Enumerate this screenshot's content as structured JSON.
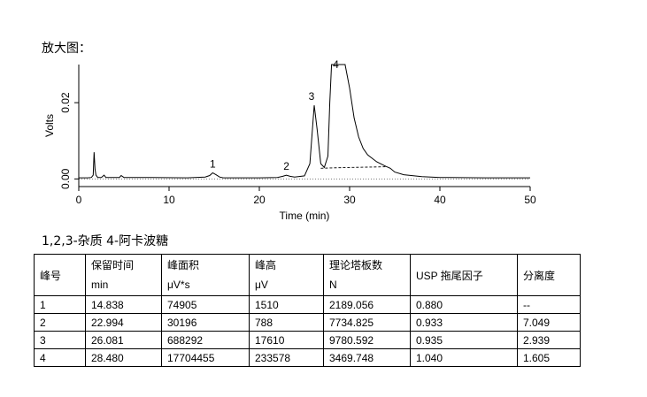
{
  "heading": "放大图：",
  "legend_note": "1,2,3-杂质  4-阿卡波糖",
  "chart_data": {
    "type": "line",
    "xlabel": "Time (min)",
    "ylabel": "Volts",
    "xlim": [
      0,
      50
    ],
    "ylim": [
      -0.002,
      0.03
    ],
    "x_ticks": [
      0,
      10,
      20,
      30,
      40,
      50
    ],
    "y_ticks": [
      0.0,
      0.02
    ],
    "y_tick_labels": [
      "0.00",
      "0.02"
    ],
    "series": [
      {
        "x": [
          0,
          1.0,
          1.4,
          1.6,
          1.7,
          1.8,
          1.9,
          2.1,
          2.5,
          2.8,
          3.0,
          3.2,
          4.0,
          4.5,
          4.7,
          5.0,
          8,
          12,
          14.0,
          14.5,
          14.838,
          15.2,
          15.6,
          16,
          20,
          22.0,
          22.6,
          22.994,
          23.4,
          23.9,
          25.0,
          25.6,
          26.081,
          26.4,
          26.8,
          27.2,
          27.6,
          27.8,
          28.0,
          28.2,
          28.48,
          29.0,
          29.5,
          30.0,
          30.5,
          31.0,
          31.5,
          32.0,
          33.0,
          34.0,
          34.5,
          35.0,
          36.0,
          38.0,
          40.0,
          45.0,
          50.0
        ],
        "y": [
          0.0003,
          0.0003,
          0.0004,
          0.001,
          0.007,
          0.0025,
          0.001,
          0.0004,
          0.0004,
          0.001,
          0.0004,
          0.0004,
          0.0004,
          0.0004,
          0.0009,
          0.0004,
          0.0004,
          0.0003,
          0.0005,
          0.0009,
          0.0016,
          0.0011,
          0.0005,
          0.0003,
          0.0003,
          0.0004,
          0.0007,
          0.001,
          0.0007,
          0.0005,
          0.0008,
          0.004,
          0.0193,
          0.013,
          0.004,
          0.003,
          0.006,
          0.02,
          0.03,
          0.03,
          0.03,
          0.03,
          0.03,
          0.0238,
          0.016,
          0.011,
          0.008,
          0.0063,
          0.0045,
          0.0033,
          0.0028,
          0.0018,
          0.0011,
          0.0006,
          0.0004,
          0.0003,
          0.0003
        ]
      },
      {
        "name": "baseline",
        "style": "dashed",
        "x": [
          26.8,
          28.0,
          30.0,
          32.0,
          34.0
        ],
        "y": [
          0.0028,
          0.0029,
          0.003,
          0.0031,
          0.0032
        ]
      }
    ],
    "annotations": [
      {
        "label": "1",
        "x": 14.838,
        "y": 0.0016
      },
      {
        "label": "2",
        "x": 22.994,
        "y": 0.001
      },
      {
        "label": "3",
        "x": 26.081,
        "y": 0.0193
      },
      {
        "label": "4",
        "x": 28.48,
        "y": 0.03
      }
    ]
  },
  "table": {
    "headers": [
      {
        "line1": "峰号",
        "line2": ""
      },
      {
        "line1": "保留时间",
        "line2": "min"
      },
      {
        "line1": "峰面积",
        "line2": "μV*s"
      },
      {
        "line1": "峰高",
        "line2": "μV"
      },
      {
        "line1": "理论塔板数",
        "line2": "N"
      },
      {
        "line1": "USP 拖尾因子",
        "line2": ""
      },
      {
        "line1": "分离度",
        "line2": ""
      }
    ],
    "rows": [
      [
        "1",
        "14.838",
        "74905",
        "1510",
        "2189.056",
        "0.880",
        "--"
      ],
      [
        "2",
        "22.994",
        "30196",
        "788",
        "7734.825",
        "0.933",
        "7.049"
      ],
      [
        "3",
        "26.081",
        "688292",
        "17610",
        "9780.592",
        "0.935",
        "2.939"
      ],
      [
        "4",
        "28.480",
        "17704455",
        "233578",
        "3469.748",
        "1.040",
        "1.605"
      ]
    ]
  }
}
